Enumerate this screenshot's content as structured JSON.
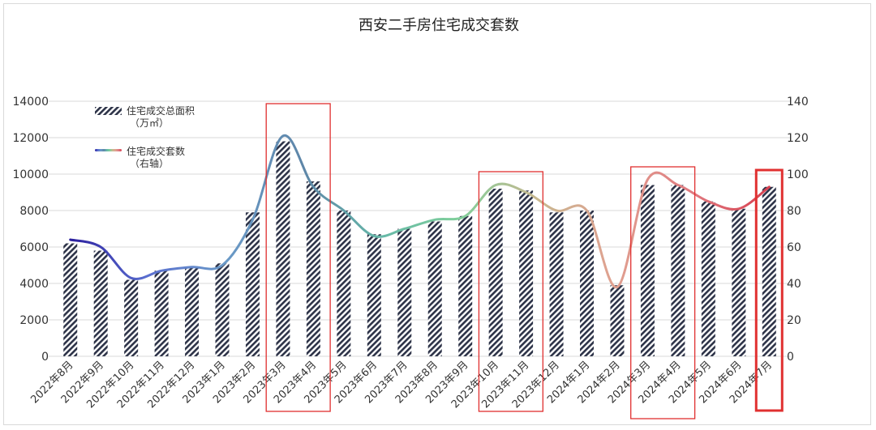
{
  "chart_data": {
    "type": "bar",
    "title": "西安二手房住宅成交套数",
    "categories": [
      "2022年8月",
      "2022年9月",
      "2022年10月",
      "2022年11月",
      "2022年12月",
      "2023年1月",
      "2023年2月",
      "2023年3月",
      "2023年4月",
      "2023年5月",
      "2023年6月",
      "2023年7月",
      "2023年8月",
      "2023年9月",
      "2023年10月",
      "2023年11月",
      "2023年12月",
      "2024年1月",
      "2024年2月",
      "2024年3月",
      "2024年4月",
      "2024年5月",
      "2024年6月",
      "2024年7月"
    ],
    "series": [
      {
        "name": "住宅成交总面积（万㎡）",
        "legend_lines": [
          "住宅成交总面积",
          "（万㎡）"
        ],
        "type": "bar",
        "axis": "left",
        "values": [
          6200,
          5800,
          4200,
          4700,
          4900,
          5100,
          7900,
          11800,
          9600,
          8000,
          6700,
          7000,
          7400,
          7700,
          9200,
          9100,
          7900,
          8000,
          3900,
          9400,
          9400,
          8500,
          8100,
          9300
        ]
      },
      {
        "name": "住宅成交套数（右轴）",
        "legend_lines": [
          "住宅成交套数",
          "（右轴）"
        ],
        "type": "line",
        "axis": "right",
        "values": [
          64,
          60,
          43,
          47,
          49,
          50,
          75,
          121,
          93,
          80,
          66,
          70,
          75,
          77,
          94,
          90,
          80,
          80,
          38,
          97,
          94,
          85,
          81,
          93
        ]
      }
    ],
    "y_left": {
      "min": 0,
      "max": 14000,
      "ticks": [
        0,
        2000,
        4000,
        6000,
        8000,
        10000,
        12000,
        14000
      ]
    },
    "y_right": {
      "min": 0,
      "max": 140,
      "ticks": [
        0,
        20,
        40,
        60,
        80,
        100,
        120,
        140
      ]
    },
    "grid": true,
    "legend_position": "top-left",
    "highlight_groups": [
      {
        "from": 7,
        "to": 8,
        "color": "#e03030"
      },
      {
        "from": 14,
        "to": 15,
        "color": "#e03030"
      },
      {
        "from": 19,
        "to": 20,
        "color": "#e03030"
      },
      {
        "from": 23,
        "to": 23,
        "color": "#e03030",
        "bold": true
      }
    ],
    "colors": {
      "bar_stripe_dark": "#2d3348",
      "line_gradient": [
        "#2b1f9e",
        "#5a6fd0",
        "#6a9ac8",
        "#5e86a8",
        "#66b8a8",
        "#7fcf9a",
        "#c8b890",
        "#e0a090",
        "#e07a80",
        "#d84050"
      ],
      "highlight": "#e03030"
    }
  }
}
